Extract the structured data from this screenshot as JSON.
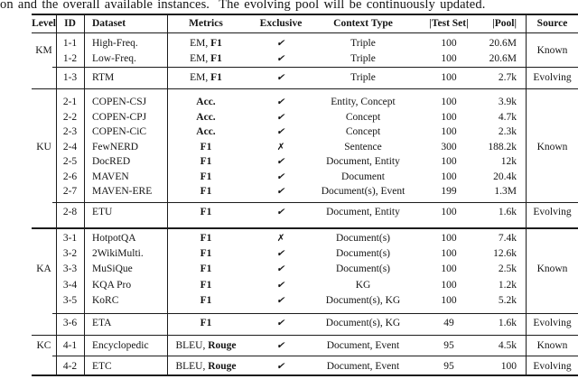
{
  "caption": "on and the overall available instances.  The evolving pool will be continuously updated.",
  "colors": {
    "background": "#ffffff",
    "text": "#141414",
    "rule": "#1c1c1c"
  },
  "icons": {
    "check": "✔",
    "cross": "✗"
  },
  "table": {
    "headers": {
      "level": "Level",
      "id": "ID",
      "dataset": "Dataset",
      "metrics": "Metrics",
      "exclusive": "Exclusive",
      "context": "Context Type",
      "test_set": "|Test Set|",
      "pool": "|Pool|",
      "source": "Source"
    },
    "sections": [
      {
        "level": "KM",
        "groups": [
          {
            "source": "Known",
            "rows": [
              {
                "id": "1-1",
                "dataset": "High-Freq.",
                "metrics_plain": "EM, ",
                "metrics_bold": "F1",
                "exclusive": true,
                "context": "Triple",
                "test_set": "100",
                "pool": "20.6M"
              },
              {
                "id": "1-2",
                "dataset": "Low-Freq.",
                "metrics_plain": "EM, ",
                "metrics_bold": "F1",
                "exclusive": true,
                "context": "Triple",
                "test_set": "100",
                "pool": "20.6M"
              }
            ]
          },
          {
            "source": "Evolving",
            "rows": [
              {
                "id": "1-3",
                "dataset": "RTM",
                "metrics_plain": "EM, ",
                "metrics_bold": "F1",
                "exclusive": true,
                "context": "Triple",
                "test_set": "100",
                "pool": "2.7k"
              }
            ]
          }
        ]
      },
      {
        "level": "KU",
        "groups": [
          {
            "source": "Known",
            "rows": [
              {
                "id": "2-1",
                "dataset": "COPEN-CSJ",
                "metrics_plain": "",
                "metrics_bold": "Acc.",
                "exclusive": true,
                "context": "Entity, Concept",
                "test_set": "100",
                "pool": "3.9k"
              },
              {
                "id": "2-2",
                "dataset": "COPEN-CPJ",
                "metrics_plain": "",
                "metrics_bold": "Acc.",
                "exclusive": true,
                "context": "Concept",
                "test_set": "100",
                "pool": "4.7k"
              },
              {
                "id": "2-3",
                "dataset": "COPEN-CiC",
                "metrics_plain": "",
                "metrics_bold": "Acc.",
                "exclusive": true,
                "context": "Concept",
                "test_set": "100",
                "pool": "2.3k"
              },
              {
                "id": "2-4",
                "dataset": "FewNERD",
                "metrics_plain": "",
                "metrics_bold": "F1",
                "exclusive": false,
                "context": "Sentence",
                "test_set": "300",
                "pool": "188.2k"
              },
              {
                "id": "2-5",
                "dataset": "DocRED",
                "metrics_plain": "",
                "metrics_bold": "F1",
                "exclusive": true,
                "context": "Document, Entity",
                "test_set": "100",
                "pool": "12k"
              },
              {
                "id": "2-6",
                "dataset": "MAVEN",
                "metrics_plain": "",
                "metrics_bold": "F1",
                "exclusive": true,
                "context": "Document",
                "test_set": "100",
                "pool": "20.4k"
              },
              {
                "id": "2-7",
                "dataset": "MAVEN-ERE",
                "metrics_plain": "",
                "metrics_bold": "F1",
                "exclusive": true,
                "context": "Document(s), Event",
                "test_set": "199",
                "pool": "1.3M"
              }
            ]
          },
          {
            "source": "Evolving",
            "rows": [
              {
                "id": "2-8",
                "dataset": "ETU",
                "metrics_plain": "",
                "metrics_bold": "F1",
                "exclusive": true,
                "context": "Document, Entity",
                "test_set": "100",
                "pool": "1.6k"
              }
            ]
          }
        ]
      },
      {
        "level": "KA",
        "groups": [
          {
            "source": "Known",
            "rows": [
              {
                "id": "3-1",
                "dataset": "HotpotQA",
                "metrics_plain": "",
                "metrics_bold": "F1",
                "exclusive": false,
                "context": "Document(s)",
                "test_set": "100",
                "pool": "7.4k"
              },
              {
                "id": "3-2",
                "dataset": "2WikiMulti.",
                "metrics_plain": "",
                "metrics_bold": "F1",
                "exclusive": true,
                "context": "Document(s)",
                "test_set": "100",
                "pool": "12.6k"
              },
              {
                "id": "3-3",
                "dataset": "MuSiQue",
                "metrics_plain": "",
                "metrics_bold": "F1",
                "exclusive": true,
                "context": "Document(s)",
                "test_set": "100",
                "pool": "2.5k"
              },
              {
                "id": "3-4",
                "dataset": "KQA Pro",
                "metrics_plain": "",
                "metrics_bold": "F1",
                "exclusive": true,
                "context": "KG",
                "test_set": "100",
                "pool": "1.2k"
              },
              {
                "id": "3-5",
                "dataset": "KoRC",
                "metrics_plain": "",
                "metrics_bold": "F1",
                "exclusive": true,
                "context": "Document(s), KG",
                "test_set": "100",
                "pool": "5.2k"
              }
            ]
          },
          {
            "source": "Evolving",
            "rows": [
              {
                "id": "3-6",
                "dataset": "ETA",
                "metrics_plain": "",
                "metrics_bold": "F1",
                "exclusive": true,
                "context": "Document(s), KG",
                "test_set": "49",
                "pool": "1.6k"
              }
            ]
          }
        ]
      },
      {
        "level": "KC",
        "groups": [
          {
            "source": "Known",
            "rows": [
              {
                "id": "4-1",
                "dataset": "Encyclopedic",
                "metrics_plain": "BLEU, ",
                "metrics_bold": "Rouge",
                "exclusive": true,
                "context": "Document, Event",
                "test_set": "95",
                "pool": "4.5k"
              }
            ]
          },
          {
            "source": "Evolving",
            "rows": [
              {
                "id": "4-2",
                "dataset": "ETC",
                "metrics_plain": "BLEU, ",
                "metrics_bold": "Rouge",
                "exclusive": true,
                "context": "Document, Event",
                "test_set": "95",
                "pool": "100"
              }
            ]
          }
        ]
      }
    ]
  }
}
